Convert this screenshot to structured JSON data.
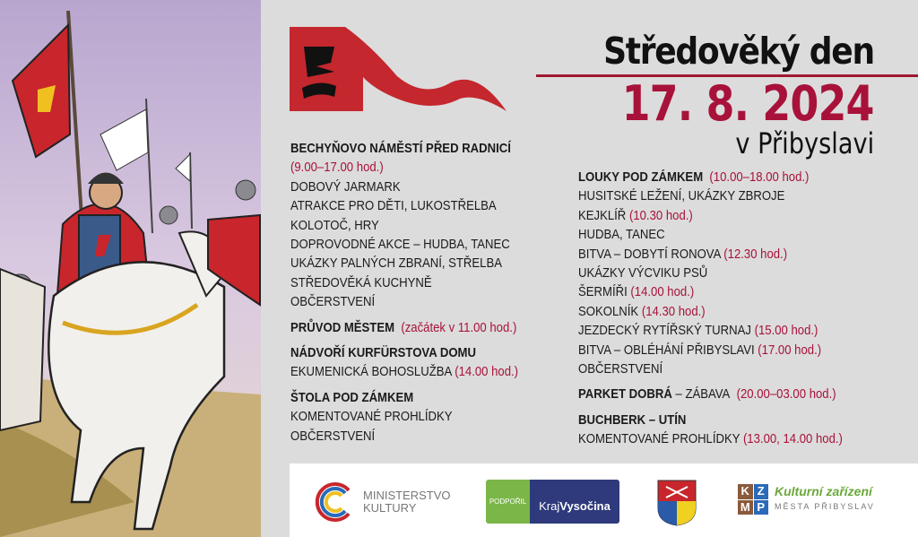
{
  "header": {
    "title": "Středověký den",
    "date": "17. 8. 2024",
    "place": "v Přibyslavi"
  },
  "colors": {
    "accent_red": "#a8123a",
    "flag_red": "#c4272d",
    "background": "#dcdcdc"
  },
  "program_left": [
    {
      "heading": "BECHYŇOVO NÁMĚSTÍ PŘED RADNICÍ",
      "heading_time": "",
      "items": [
        {
          "text": "",
          "time": "(9.00–17.00 hod.)"
        },
        {
          "text": "DOBOVÝ JARMARK",
          "time": ""
        },
        {
          "text": "ATRAKCE PRO DĚTI, LUKOSTŘELBA",
          "time": ""
        },
        {
          "text": "KOLOTOČ, HRY",
          "time": ""
        },
        {
          "text": "DOPROVODNÉ AKCE – HUDBA, TANEC",
          "time": ""
        },
        {
          "text": "UKÁZKY PALNÝCH ZBRANÍ, STŘELBA",
          "time": ""
        },
        {
          "text": "STŘEDOVĚKÁ KUCHYNĚ",
          "time": ""
        },
        {
          "text": "OBČERSTVENÍ",
          "time": ""
        }
      ]
    },
    {
      "heading": "PRŮVOD MĚSTEM",
      "heading_time": "(začátek v 11.00 hod.)",
      "items": []
    },
    {
      "heading": "NÁDVOŘÍ KURFÜRSTOVA DOMU",
      "heading_time": "",
      "items": [
        {
          "text": "EKUMENICKÁ BOHOSLUŽBA",
          "time": "(14.00 hod.)"
        }
      ]
    },
    {
      "heading": "ŠTOLA POD ZÁMKEM",
      "heading_time": "",
      "items": [
        {
          "text": "KOMENTOVANÉ PROHLÍDKY",
          "time": ""
        },
        {
          "text": "OBČERSTVENÍ",
          "time": ""
        }
      ]
    }
  ],
  "program_right": [
    {
      "heading": "LOUKY POD ZÁMKEM",
      "heading_time": "(10.00–18.00 hod.)",
      "items": [
        {
          "text": "HUSITSKÉ LEŽENÍ, UKÁZKY ZBROJE",
          "time": ""
        },
        {
          "text": "KEJKLÍŘ",
          "time": "(10.30 hod.)"
        },
        {
          "text": "HUDBA, TANEC",
          "time": ""
        },
        {
          "text": "BITVA – DOBYTÍ RONOVA",
          "time": "(12.30 hod.)"
        },
        {
          "text": "UKÁZKY VÝCVIKU PSŮ",
          "time": ""
        },
        {
          "text": "ŠERMÍŘI",
          "time": "(14.00 hod.)"
        },
        {
          "text": "SOKOLNÍK",
          "time": "(14.30 hod.)"
        },
        {
          "text": "JEZDECKÝ RYTÍŘSKÝ TURNAJ",
          "time": "(15.00 hod.)"
        },
        {
          "text": "BITVA – OBLÉHÁNÍ PŘIBYSLAVI",
          "time": "(17.00 hod.)"
        },
        {
          "text": "OBČERSTVENÍ",
          "time": ""
        }
      ]
    },
    {
      "heading": "PARKET DOBRÁ",
      "heading_suffix": " – ZÁBAVA",
      "heading_time": "(20.00–03.00 hod.)",
      "items": []
    },
    {
      "heading": "BUCHBERK – UTÍN",
      "heading_time": "",
      "items": [
        {
          "text": "KOMENTOVANÉ PROHLÍDKY",
          "time": "(13.00, 14.00 hod.)"
        }
      ]
    }
  ],
  "sponsors": {
    "ministry": {
      "line1": "MINISTERSTVO",
      "line2": "KULTURY"
    },
    "kraj": {
      "label": "PODPOŘIL",
      "name_a": "Kraj ",
      "name_b": "Vysočina"
    },
    "kzmp": {
      "letters": [
        "K",
        "Z",
        "M",
        "P"
      ],
      "line1": "Kulturní zařízení",
      "line2": "MĚSTA PŘIBYSLAV"
    }
  }
}
